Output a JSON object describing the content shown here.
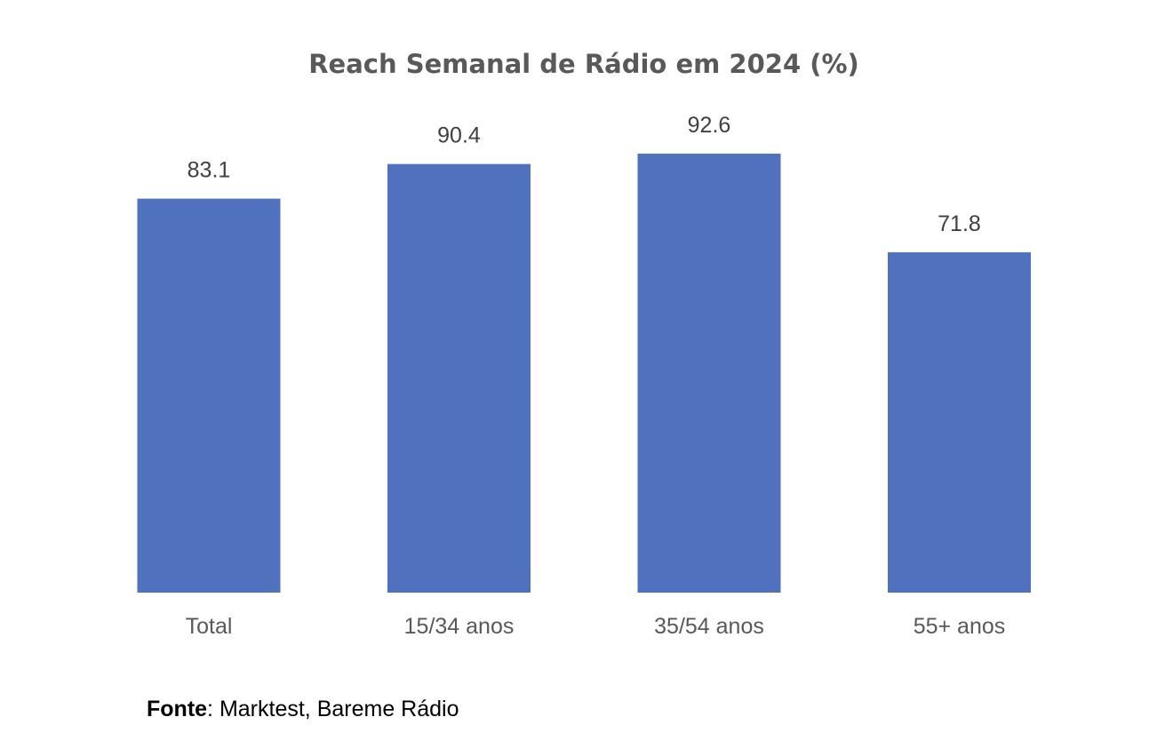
{
  "chart_data": {
    "type": "bar",
    "title": "Reach Semanal de Rádio em 2024 (%)",
    "categories": [
      "Total",
      "15/34 anos",
      "35/54 anos",
      "55+ anos"
    ],
    "values": [
      83.1,
      90.4,
      92.6,
      71.8
    ],
    "value_labels": [
      "83.1",
      "90.4",
      "92.6",
      "71.8"
    ],
    "xlabel": "",
    "ylabel": "",
    "ylim": [
      0,
      100
    ],
    "grid": false,
    "legend": "none",
    "y_axis_visible": false,
    "bar_color": "#4F71BE"
  },
  "source": {
    "label": "Fonte",
    "separator": ": ",
    "text": "Marktest, Bareme Rádio"
  }
}
